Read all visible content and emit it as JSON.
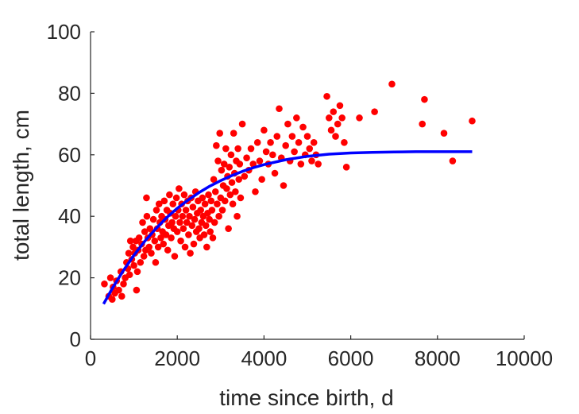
{
  "chart_data": {
    "type": "scatter",
    "xlabel": "time since birth, d",
    "ylabel": "total length, cm",
    "xlim": [
      0,
      10000
    ],
    "ylim": [
      0,
      100
    ],
    "xticks": [
      "0",
      "2000",
      "4000",
      "6000",
      "8000",
      "10000"
    ],
    "yticks": [
      "0",
      "20",
      "40",
      "60",
      "80",
      "100"
    ],
    "grid": false,
    "box": "open (left and bottom axes only)",
    "series": [
      {
        "kind": "points",
        "color": "#ff0000",
        "marker": "filled-circle",
        "points": [
          [
            320,
            18
          ],
          [
            420,
            14
          ],
          [
            460,
            20
          ],
          [
            500,
            13
          ],
          [
            520,
            17
          ],
          [
            560,
            15
          ],
          [
            600,
            19
          ],
          [
            650,
            16
          ],
          [
            700,
            22
          ],
          [
            720,
            14
          ],
          [
            760,
            18
          ],
          [
            800,
            20
          ],
          [
            830,
            25
          ],
          [
            860,
            23
          ],
          [
            880,
            28
          ],
          [
            900,
            21
          ],
          [
            920,
            32
          ],
          [
            950,
            26
          ],
          [
            980,
            30
          ],
          [
            1000,
            24
          ],
          [
            1020,
            28
          ],
          [
            1050,
            32
          ],
          [
            1060,
            16
          ],
          [
            1080,
            22
          ],
          [
            1100,
            29
          ],
          [
            1120,
            33
          ],
          [
            1150,
            25
          ],
          [
            1180,
            31
          ],
          [
            1200,
            38
          ],
          [
            1230,
            27
          ],
          [
            1250,
            35
          ],
          [
            1270,
            29
          ],
          [
            1290,
            46
          ],
          [
            1300,
            40
          ],
          [
            1320,
            33
          ],
          [
            1350,
            30
          ],
          [
            1370,
            36
          ],
          [
            1400,
            28
          ],
          [
            1420,
            34
          ],
          [
            1450,
            39
          ],
          [
            1480,
            32
          ],
          [
            1500,
            25
          ],
          [
            1520,
            42
          ],
          [
            1540,
            36
          ],
          [
            1560,
            30
          ],
          [
            1580,
            44
          ],
          [
            1600,
            38
          ],
          [
            1620,
            33
          ],
          [
            1640,
            40
          ],
          [
            1660,
            35
          ],
          [
            1680,
            31
          ],
          [
            1700,
            45
          ],
          [
            1720,
            39
          ],
          [
            1740,
            34
          ],
          [
            1760,
            42
          ],
          [
            1780,
            29
          ],
          [
            1800,
            37
          ],
          [
            1820,
            47
          ],
          [
            1840,
            41
          ],
          [
            1860,
            33
          ],
          [
            1880,
            38
          ],
          [
            1900,
            44
          ],
          [
            1920,
            36
          ],
          [
            1940,
            27
          ],
          [
            1960,
            40
          ],
          [
            1980,
            46
          ],
          [
            2000,
            35
          ],
          [
            2020,
            42
          ],
          [
            2040,
            49
          ],
          [
            2060,
            38
          ],
          [
            2080,
            32
          ],
          [
            2100,
            44
          ],
          [
            2120,
            40
          ],
          [
            2140,
            36
          ],
          [
            2160,
            47
          ],
          [
            2180,
            30
          ],
          [
            2200,
            42
          ],
          [
            2220,
            38
          ],
          [
            2240,
            45
          ],
          [
            2260,
            34
          ],
          [
            2280,
            40
          ],
          [
            2300,
            28
          ],
          [
            2320,
            46
          ],
          [
            2340,
            37
          ],
          [
            2360,
            43
          ],
          [
            2380,
            31
          ],
          [
            2400,
            39
          ],
          [
            2420,
            48
          ],
          [
            2440,
            35
          ],
          [
            2460,
            41
          ],
          [
            2480,
            45
          ],
          [
            2500,
            36
          ],
          [
            2520,
            33
          ],
          [
            2540,
            42
          ],
          [
            2560,
            38
          ],
          [
            2580,
            46
          ],
          [
            2600,
            40
          ],
          [
            2620,
            34
          ],
          [
            2640,
            44
          ],
          [
            2660,
            37
          ],
          [
            2680,
            30
          ],
          [
            2700,
            41
          ],
          [
            2720,
            47
          ],
          [
            2740,
            39
          ],
          [
            2760,
            35
          ],
          [
            2780,
            45
          ],
          [
            2800,
            42
          ],
          [
            2820,
            33
          ],
          [
            2840,
            52
          ],
          [
            2860,
            38
          ],
          [
            2880,
            48
          ],
          [
            2900,
            63
          ],
          [
            2920,
            44
          ],
          [
            2940,
            58
          ],
          [
            2960,
            40
          ],
          [
            2980,
            67
          ],
          [
            3000,
            46
          ],
          [
            3020,
            55
          ],
          [
            3040,
            42
          ],
          [
            3060,
            50
          ],
          [
            3080,
            57
          ],
          [
            3100,
            45
          ],
          [
            3120,
            62
          ],
          [
            3140,
            49
          ],
          [
            3160,
            53
          ],
          [
            3180,
            36
          ],
          [
            3200,
            56
          ],
          [
            3220,
            47
          ],
          [
            3240,
            60
          ],
          [
            3260,
            51
          ],
          [
            3280,
            44
          ],
          [
            3300,
            67
          ],
          [
            3320,
            54
          ],
          [
            3340,
            48
          ],
          [
            3360,
            58
          ],
          [
            3380,
            40
          ],
          [
            3400,
            62
          ],
          [
            3420,
            52
          ],
          [
            3440,
            57
          ],
          [
            3460,
            46
          ],
          [
            3500,
            70
          ],
          [
            3550,
            53
          ],
          [
            3600,
            59
          ],
          [
            3650,
            55
          ],
          [
            3700,
            62
          ],
          [
            3750,
            57
          ],
          [
            3800,
            48
          ],
          [
            3850,
            64
          ],
          [
            3900,
            58
          ],
          [
            3950,
            52
          ],
          [
            4000,
            68
          ],
          [
            4050,
            61
          ],
          [
            4100,
            57
          ],
          [
            4150,
            64
          ],
          [
            4200,
            60
          ],
          [
            4250,
            54
          ],
          [
            4300,
            66
          ],
          [
            4350,
            75
          ],
          [
            4400,
            59
          ],
          [
            4450,
            50
          ],
          [
            4500,
            63
          ],
          [
            4550,
            70
          ],
          [
            4600,
            58
          ],
          [
            4650,
            66
          ],
          [
            4700,
            61
          ],
          [
            4750,
            72
          ],
          [
            4800,
            64
          ],
          [
            4850,
            57
          ],
          [
            4900,
            69
          ],
          [
            4950,
            60
          ],
          [
            5000,
            66
          ],
          [
            5050,
            62
          ],
          [
            5100,
            58
          ],
          [
            5150,
            64
          ],
          [
            5200,
            60
          ],
          [
            5250,
            57
          ],
          [
            5450,
            79
          ],
          [
            5500,
            72
          ],
          [
            5550,
            68
          ],
          [
            5600,
            74
          ],
          [
            5650,
            66
          ],
          [
            5700,
            70
          ],
          [
            5750,
            76
          ],
          [
            5800,
            72
          ],
          [
            5850,
            64
          ],
          [
            5900,
            56
          ],
          [
            6200,
            72
          ],
          [
            6550,
            74
          ],
          [
            6950,
            83
          ],
          [
            7650,
            70
          ],
          [
            7700,
            78
          ],
          [
            8150,
            67
          ],
          [
            8350,
            58
          ],
          [
            8800,
            71
          ]
        ]
      },
      {
        "kind": "fitted-curve",
        "color": "#0000ff",
        "x": [
          300,
          500,
          750,
          1000,
          1250,
          1500,
          1750,
          2000,
          2250,
          2500,
          2750,
          3000,
          3250,
          3500,
          3750,
          4000,
          4500,
          5000,
          5500,
          6000,
          6500,
          7000,
          7500,
          8000,
          8500,
          8800
        ],
        "y": [
          11.5,
          16.5,
          22.2,
          27.3,
          31.9,
          35.9,
          39.5,
          42.6,
          45.3,
          47.7,
          49.8,
          51.6,
          53.2,
          54.6,
          55.8,
          56.8,
          58.4,
          59.5,
          60.2,
          60.6,
          60.8,
          60.9,
          61.0,
          61.0,
          61.0,
          61.0
        ]
      }
    ]
  }
}
